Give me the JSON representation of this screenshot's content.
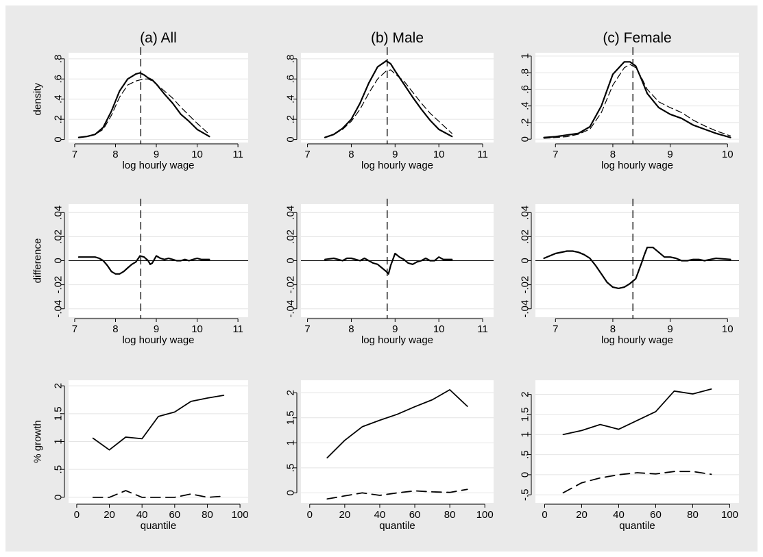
{
  "figure": {
    "background": "#eaeaea",
    "plot_background": "#ffffff",
    "grid_color": "#e4e4e4",
    "line_color": "#000000"
  },
  "chart_data": [
    {
      "id": "density_all",
      "type": "line",
      "title": "(a) All",
      "xlabel": "log hourly wage",
      "ylabel": "density",
      "xticks": [
        7,
        8,
        9,
        10,
        11
      ],
      "xtick_labels": [
        "7",
        "8",
        "9",
        "10",
        "11"
      ],
      "yticks": [
        0,
        0.2,
        0.4,
        0.6,
        0.8
      ],
      "ytick_labels": [
        "0",
        ".2",
        ".4",
        ".6",
        ".8"
      ],
      "xlim": [
        6.85,
        11.25
      ],
      "ylim": [
        -0.03,
        0.86
      ],
      "grid": true,
      "vline": 8.62,
      "series": [
        {
          "style": "solid",
          "width": 2.2,
          "x": [
            7.1,
            7.3,
            7.5,
            7.7,
            7.9,
            8.1,
            8.3,
            8.5,
            8.6,
            8.7,
            8.8,
            8.9,
            9.0,
            9.2,
            9.4,
            9.6,
            9.8,
            10.0,
            10.3
          ],
          "y": [
            0.02,
            0.03,
            0.05,
            0.12,
            0.28,
            0.48,
            0.6,
            0.65,
            0.66,
            0.64,
            0.61,
            0.59,
            0.55,
            0.45,
            0.36,
            0.25,
            0.18,
            0.1,
            0.03
          ]
        },
        {
          "style": "dashed",
          "width": 1.2,
          "x": [
            7.1,
            7.3,
            7.5,
            7.7,
            7.9,
            8.1,
            8.3,
            8.5,
            8.6,
            8.7,
            8.8,
            8.9,
            9.0,
            9.2,
            9.4,
            9.6,
            9.8,
            10.0,
            10.3
          ],
          "y": [
            0.02,
            0.03,
            0.05,
            0.1,
            0.24,
            0.42,
            0.54,
            0.58,
            0.59,
            0.6,
            0.6,
            0.58,
            0.55,
            0.48,
            0.41,
            0.32,
            0.24,
            0.16,
            0.05
          ]
        }
      ]
    },
    {
      "id": "density_male",
      "type": "line",
      "title": "(b) Male",
      "xlabel": "log hourly wage",
      "ylabel": "",
      "xticks": [
        7,
        8,
        9,
        10,
        11
      ],
      "xtick_labels": [
        "7",
        "8",
        "9",
        "10",
        "11"
      ],
      "yticks": [
        0,
        0.2,
        0.4,
        0.6,
        0.8
      ],
      "ytick_labels": [
        "0",
        ".2",
        ".4",
        ".6",
        ".8"
      ],
      "xlim": [
        6.85,
        11.25
      ],
      "ylim": [
        -0.03,
        0.86
      ],
      "grid": true,
      "vline": 8.82,
      "series": [
        {
          "style": "solid",
          "width": 2.2,
          "x": [
            7.4,
            7.6,
            7.8,
            8.0,
            8.2,
            8.4,
            8.6,
            8.8,
            8.9,
            9.0,
            9.2,
            9.4,
            9.6,
            9.8,
            10.0,
            10.3
          ],
          "y": [
            0.02,
            0.05,
            0.11,
            0.2,
            0.36,
            0.56,
            0.72,
            0.78,
            0.75,
            0.68,
            0.55,
            0.42,
            0.3,
            0.19,
            0.1,
            0.03
          ]
        },
        {
          "style": "dashed",
          "width": 1.2,
          "x": [
            7.4,
            7.6,
            7.8,
            8.0,
            8.2,
            8.4,
            8.6,
            8.8,
            8.9,
            9.0,
            9.2,
            9.4,
            9.6,
            9.8,
            10.0,
            10.3
          ],
          "y": [
            0.02,
            0.05,
            0.1,
            0.18,
            0.3,
            0.46,
            0.6,
            0.68,
            0.69,
            0.65,
            0.58,
            0.47,
            0.36,
            0.26,
            0.18,
            0.06
          ]
        }
      ]
    },
    {
      "id": "density_female",
      "type": "line",
      "title": "(c) Female",
      "xlabel": "log hourly wage",
      "ylabel": "",
      "xticks": [
        7,
        8,
        9,
        10
      ],
      "xtick_labels": [
        "7",
        "8",
        "9",
        "10"
      ],
      "yticks": [
        0,
        0.2,
        0.4,
        0.6,
        0.8,
        1
      ],
      "ytick_labels": [
        "0",
        ".2",
        ".4",
        ".6",
        ".8",
        "1"
      ],
      "xlim": [
        6.65,
        10.2
      ],
      "ylim": [
        -0.04,
        1.04
      ],
      "grid": true,
      "vline": 8.35,
      "series": [
        {
          "style": "solid",
          "width": 2.2,
          "x": [
            6.8,
            7.0,
            7.2,
            7.4,
            7.6,
            7.8,
            8.0,
            8.2,
            8.3,
            8.4,
            8.5,
            8.6,
            8.8,
            9.0,
            9.2,
            9.4,
            9.6,
            9.8,
            10.05
          ],
          "y": [
            0.02,
            0.03,
            0.05,
            0.07,
            0.15,
            0.4,
            0.78,
            0.93,
            0.93,
            0.88,
            0.72,
            0.55,
            0.38,
            0.3,
            0.25,
            0.17,
            0.12,
            0.07,
            0.02
          ]
        },
        {
          "style": "dashed",
          "width": 1.2,
          "x": [
            6.8,
            7.0,
            7.2,
            7.4,
            7.6,
            7.8,
            8.0,
            8.2,
            8.3,
            8.4,
            8.5,
            8.6,
            8.8,
            9.0,
            9.2,
            9.4,
            9.6,
            9.8,
            10.05
          ],
          "y": [
            0.01,
            0.02,
            0.03,
            0.06,
            0.12,
            0.32,
            0.65,
            0.86,
            0.9,
            0.86,
            0.74,
            0.6,
            0.45,
            0.38,
            0.32,
            0.23,
            0.16,
            0.1,
            0.04
          ]
        }
      ]
    },
    {
      "id": "difference_all",
      "type": "line",
      "title": "",
      "xlabel": "log hourly wage",
      "ylabel": "difference",
      "xticks": [
        7,
        8,
        9,
        10,
        11
      ],
      "xtick_labels": [
        "7",
        "8",
        "9",
        "10",
        "11"
      ],
      "yticks": [
        -0.04,
        -0.02,
        0,
        0.02,
        0.04
      ],
      "ytick_labels": [
        "-.04",
        "-.02",
        "0",
        ".02",
        ".04"
      ],
      "xlim": [
        6.85,
        11.25
      ],
      "ylim": [
        -0.047,
        0.047
      ],
      "grid": true,
      "vline": 8.62,
      "hline": 0,
      "series": [
        {
          "style": "solid",
          "width": 2.2,
          "x": [
            7.1,
            7.3,
            7.5,
            7.6,
            7.7,
            7.8,
            7.9,
            8.0,
            8.1,
            8.2,
            8.3,
            8.4,
            8.5,
            8.6,
            8.7,
            8.8,
            8.85,
            8.9,
            9.0,
            9.1,
            9.2,
            9.3,
            9.4,
            9.5,
            9.6,
            9.7,
            9.8,
            9.9,
            10.0,
            10.1,
            10.3
          ],
          "y": [
            0.003,
            0.003,
            0.003,
            0.002,
            0.0,
            -0.004,
            -0.009,
            -0.011,
            -0.011,
            -0.009,
            -0.006,
            -0.003,
            -0.001,
            0.004,
            0.003,
            0.0,
            -0.003,
            -0.002,
            0.004,
            0.002,
            0.001,
            0.002,
            0.001,
            0.0,
            0.0,
            0.001,
            0.0,
            0.001,
            0.002,
            0.001,
            0.001
          ]
        }
      ]
    },
    {
      "id": "difference_male",
      "type": "line",
      "title": "",
      "xlabel": "log hourly wage",
      "ylabel": "",
      "xticks": [
        7,
        8,
        9,
        10,
        11
      ],
      "xtick_labels": [
        "7",
        "8",
        "9",
        "10",
        "11"
      ],
      "yticks": [
        -0.04,
        -0.02,
        0,
        0.02,
        0.04
      ],
      "ytick_labels": [
        "-.04",
        "-.02",
        "0",
        ".02",
        ".04"
      ],
      "xlim": [
        6.85,
        11.25
      ],
      "ylim": [
        -0.047,
        0.047
      ],
      "grid": true,
      "vline": 8.82,
      "hline": 0,
      "series": [
        {
          "style": "solid",
          "width": 2.2,
          "x": [
            7.4,
            7.6,
            7.7,
            7.8,
            7.9,
            8.0,
            8.1,
            8.2,
            8.3,
            8.4,
            8.5,
            8.6,
            8.7,
            8.8,
            8.85,
            8.9,
            9.0,
            9.1,
            9.2,
            9.3,
            9.4,
            9.5,
            9.6,
            9.7,
            9.8,
            9.9,
            10.0,
            10.1,
            10.3
          ],
          "y": [
            0.001,
            0.002,
            0.001,
            0.0,
            0.002,
            0.002,
            0.001,
            0.0,
            0.002,
            0.0,
            -0.002,
            -0.003,
            -0.006,
            -0.009,
            -0.011,
            -0.004,
            0.006,
            0.003,
            0.001,
            -0.002,
            -0.003,
            -0.001,
            0.0,
            0.002,
            0.0,
            0.0,
            0.003,
            0.001,
            0.001
          ]
        }
      ]
    },
    {
      "id": "difference_female",
      "type": "line",
      "title": "",
      "xlabel": "log hourly wage",
      "ylabel": "",
      "xticks": [
        7,
        8,
        9,
        10
      ],
      "xtick_labels": [
        "7",
        "8",
        "9",
        "10"
      ],
      "yticks": [
        -0.04,
        -0.02,
        0,
        0.02,
        0.04
      ],
      "ytick_labels": [
        "-.04",
        "-.02",
        "0",
        ".02",
        ".04"
      ],
      "xlim": [
        6.65,
        10.2
      ],
      "ylim": [
        -0.047,
        0.047
      ],
      "grid": true,
      "vline": 8.35,
      "hline": 0,
      "series": [
        {
          "style": "solid",
          "width": 2.2,
          "x": [
            6.8,
            7.0,
            7.2,
            7.3,
            7.4,
            7.5,
            7.6,
            7.7,
            7.8,
            7.9,
            8.0,
            8.1,
            8.2,
            8.3,
            8.4,
            8.5,
            8.55,
            8.6,
            8.7,
            8.8,
            8.9,
            9.0,
            9.1,
            9.2,
            9.3,
            9.4,
            9.5,
            9.6,
            9.7,
            9.8,
            10.05
          ],
          "y": [
            0.002,
            0.006,
            0.008,
            0.008,
            0.007,
            0.005,
            0.002,
            -0.004,
            -0.011,
            -0.018,
            -0.022,
            -0.023,
            -0.022,
            -0.019,
            -0.015,
            -0.002,
            0.005,
            0.011,
            0.011,
            0.007,
            0.003,
            0.003,
            0.002,
            0.0,
            0.0,
            0.001,
            0.001,
            0.0,
            0.001,
            0.002,
            0.001
          ]
        }
      ]
    },
    {
      "id": "growth_all",
      "type": "line",
      "title": "",
      "xlabel": "quantile",
      "ylabel": "% growth",
      "xticks": [
        0,
        20,
        40,
        60,
        80,
        100
      ],
      "xtick_labels": [
        "0",
        "20",
        "40",
        "60",
        "80",
        "100"
      ],
      "yticks": [
        0,
        0.5,
        1,
        1.5,
        2
      ],
      "ytick_labels": [
        "0",
        ".5",
        "1",
        "1.5",
        "2"
      ],
      "xlim": [
        -5,
        105
      ],
      "ylim": [
        -0.1,
        2.1
      ],
      "grid": true,
      "series": [
        {
          "style": "solid",
          "width": 1.8,
          "x": [
            10,
            20,
            30,
            40,
            50,
            60,
            70,
            80,
            90
          ],
          "y": [
            1.06,
            0.85,
            1.08,
            1.05,
            1.45,
            1.53,
            1.72,
            1.78,
            1.83
          ]
        },
        {
          "style": "dashed2",
          "width": 1.8,
          "x": [
            10,
            20,
            30,
            40,
            50,
            60,
            70,
            80,
            90
          ],
          "y": [
            0.0,
            0.0,
            0.12,
            0.0,
            0.0,
            0.0,
            0.06,
            0.0,
            0.02
          ]
        }
      ]
    },
    {
      "id": "growth_male",
      "type": "line",
      "title": "",
      "xlabel": "quantile",
      "ylabel": "",
      "xticks": [
        0,
        20,
        40,
        60,
        80,
        100
      ],
      "xtick_labels": [
        "0",
        "20",
        "40",
        "60",
        "80",
        "100"
      ],
      "yticks": [
        0,
        0.5,
        1,
        1.5,
        2
      ],
      "ytick_labels": [
        "0",
        ".5",
        "1",
        "1.5",
        "2"
      ],
      "xlim": [
        -5,
        105
      ],
      "ylim": [
        -0.2,
        2.25
      ],
      "grid": true,
      "series": [
        {
          "style": "solid",
          "width": 1.8,
          "x": [
            10,
            20,
            30,
            40,
            50,
            60,
            70,
            80,
            90
          ],
          "y": [
            0.7,
            1.05,
            1.32,
            1.45,
            1.57,
            1.72,
            1.86,
            2.06,
            1.73
          ]
        },
        {
          "style": "dashed2",
          "width": 1.8,
          "x": [
            10,
            20,
            30,
            40,
            50,
            60,
            70,
            80,
            90
          ],
          "y": [
            -0.12,
            -0.06,
            0.0,
            -0.05,
            0.0,
            0.04,
            0.02,
            0.01,
            0.07
          ]
        }
      ]
    },
    {
      "id": "growth_female",
      "type": "line",
      "title": "",
      "xlabel": "quantile",
      "ylabel": "",
      "xticks": [
        0,
        20,
        40,
        60,
        80,
        100
      ],
      "xtick_labels": [
        "0",
        "20",
        "40",
        "60",
        "80",
        "100"
      ],
      "yticks": [
        -0.5,
        0,
        0.5,
        1,
        1.5,
        2
      ],
      "ytick_labels": [
        "-.5",
        "0",
        ".5",
        "1",
        "1.5",
        "2"
      ],
      "xlim": [
        -5,
        105
      ],
      "ylim": [
        -0.7,
        2.35
      ],
      "grid": true,
      "series": [
        {
          "style": "solid",
          "width": 1.8,
          "x": [
            10,
            20,
            30,
            40,
            50,
            60,
            70,
            80,
            90
          ],
          "y": [
            1.0,
            1.1,
            1.25,
            1.13,
            1.35,
            1.57,
            2.08,
            2.01,
            2.13
          ]
        },
        {
          "style": "dashed2",
          "width": 1.8,
          "x": [
            10,
            20,
            30,
            40,
            50,
            60,
            70,
            80,
            90
          ],
          "y": [
            -0.45,
            -0.2,
            -0.08,
            0.0,
            0.05,
            0.02,
            0.08,
            0.08,
            0.01
          ]
        }
      ]
    }
  ]
}
